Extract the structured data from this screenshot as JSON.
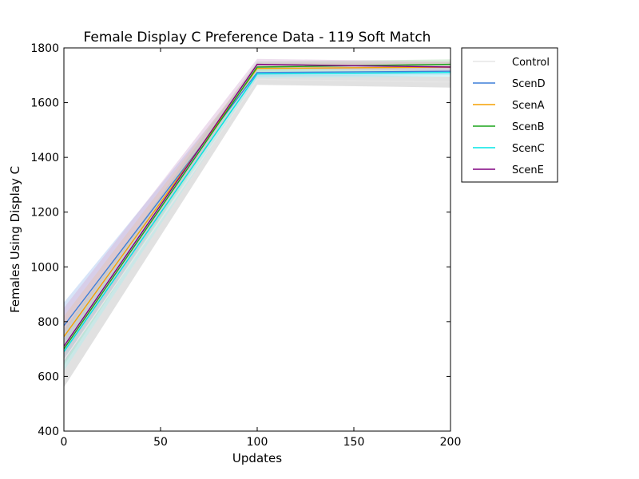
{
  "chart_data": {
    "type": "line",
    "title": "Female Display C Preference Data - 119 Soft Match",
    "xlabel": "Updates",
    "ylabel": "Females Using Display C",
    "xlim": [
      0,
      200
    ],
    "ylim": [
      400,
      1800
    ],
    "xticks": [
      0,
      50,
      100,
      150,
      200
    ],
    "yticks": [
      400,
      600,
      800,
      1000,
      1200,
      1400,
      1600,
      1800
    ],
    "grid": false,
    "legend_position": "outside-right-top",
    "x": [
      0,
      100,
      200
    ],
    "series": [
      {
        "name": "Control",
        "color": "#e6e6e6",
        "band_color": "#bdbdbd",
        "values": [
          660,
          1685,
          1675
        ],
        "band_lower": [
          560,
          1665,
          1655
        ],
        "band_upper": [
          740,
          1705,
          1695
        ]
      },
      {
        "name": "ScenD",
        "color": "#3d7fd9",
        "band_color": "#a7c4f0",
        "values": [
          785,
          1710,
          1715
        ],
        "band_lower": [
          720,
          1695,
          1700
        ],
        "band_upper": [
          870,
          1730,
          1735
        ]
      },
      {
        "name": "ScenA",
        "color": "#f5a000",
        "band_color": "#f0cf92",
        "values": [
          745,
          1725,
          1730
        ],
        "band_lower": [
          680,
          1712,
          1715
        ],
        "band_upper": [
          820,
          1745,
          1748
        ]
      },
      {
        "name": "ScenB",
        "color": "#1aa31a",
        "band_color": "#a8d8a8",
        "values": [
          700,
          1730,
          1740
        ],
        "band_lower": [
          640,
          1715,
          1725
        ],
        "band_upper": [
          770,
          1750,
          1758
        ]
      },
      {
        "name": "ScenC",
        "color": "#00e5e5",
        "band_color": "#b0f0f0",
        "values": [
          690,
          1705,
          1710
        ],
        "band_lower": [
          620,
          1690,
          1695
        ],
        "band_upper": [
          760,
          1722,
          1725
        ]
      },
      {
        "name": "ScenE",
        "color": "#800080",
        "band_color": "#d6b3d6",
        "values": [
          710,
          1740,
          1730
        ],
        "band_lower": [
          650,
          1725,
          1715
        ],
        "band_upper": [
          850,
          1760,
          1750
        ]
      }
    ]
  }
}
